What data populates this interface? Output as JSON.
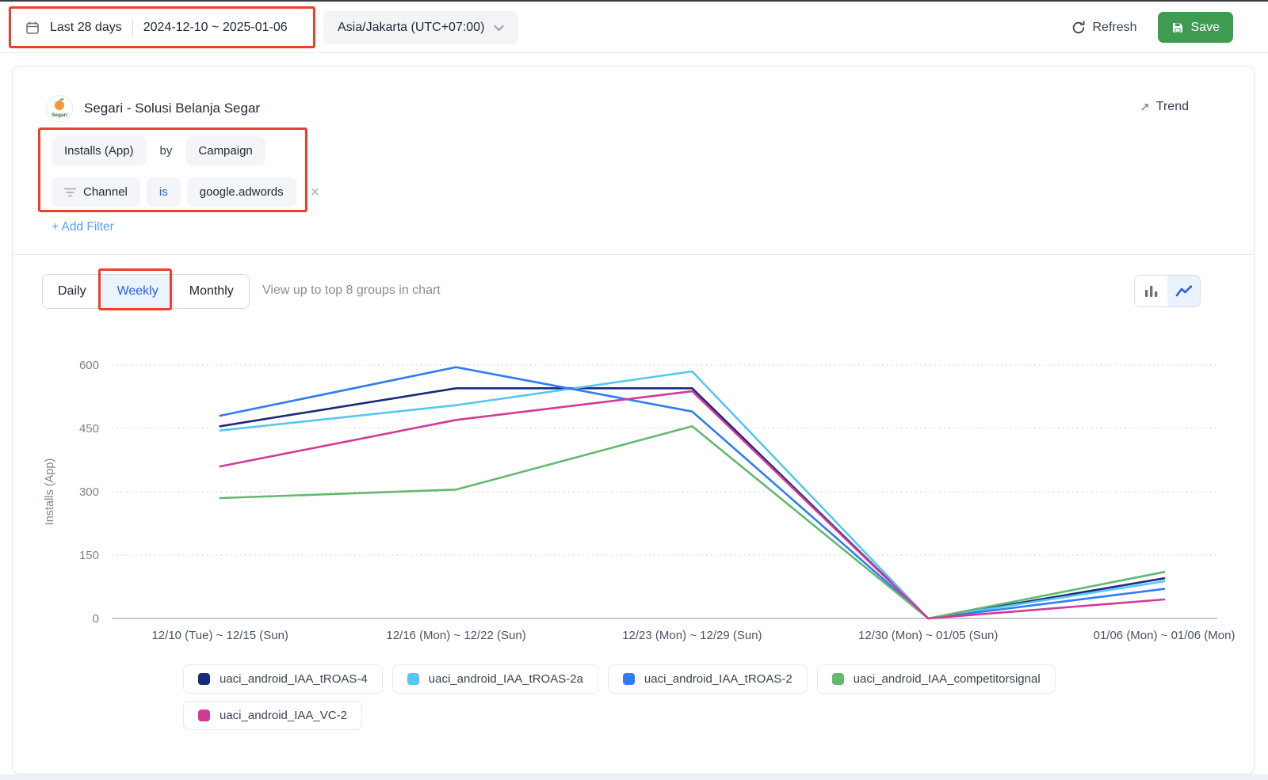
{
  "topbar": {
    "date_preset": "Last 28 days",
    "date_range": "2024-12-10 ~ 2025-01-06",
    "timezone": "Asia/Jakarta (UTC+07:00)",
    "refresh_label": "Refresh",
    "save_label": "Save"
  },
  "report": {
    "app_name": "Segari - Solusi Belanja Segar",
    "logo_text": "Segari",
    "trend_label": "Trend",
    "trend_arrow": "↗",
    "metric": "Installs (App)",
    "by_label": "by",
    "group_by": "Campaign",
    "filter": {
      "field": "Channel",
      "operator": "is",
      "value": "google.adwords",
      "close_glyph": "×"
    },
    "add_filter_label": "+ Add Filter"
  },
  "controls": {
    "granularity_tabs": [
      "Daily",
      "Weekly",
      "Monthly"
    ],
    "active_tab": "Weekly",
    "hint": "View up to top 8 groups in chart",
    "view_toggle": {
      "options": [
        "bar",
        "line"
      ],
      "active": "line"
    }
  },
  "chart_data": {
    "type": "line",
    "title": "",
    "xlabel": "",
    "ylabel": "Installs (App)",
    "yticks": [
      0,
      150,
      300,
      450,
      600
    ],
    "ylim": [
      0,
      650
    ],
    "grid": "dotted-horizontal",
    "legend_position": "bottom",
    "categories": [
      "12/10 (Tue) ~ 12/15 (Sun)",
      "12/16 (Mon) ~ 12/22 (Sun)",
      "12/23 (Mon) ~ 12/29 (Sun)",
      "12/30 (Mon) ~ 01/05 (Sun)",
      "01/06 (Mon) ~ 01/06 (Mon)"
    ],
    "series": [
      {
        "name": "uaci_android_IAA_tROAS-4",
        "color": "#1a2a7c",
        "values": [
          455,
          545,
          545,
          0,
          95
        ]
      },
      {
        "name": "uaci_android_IAA_tROAS-2a",
        "color": "#55c7f2",
        "values": [
          445,
          505,
          585,
          0,
          88
        ]
      },
      {
        "name": "uaci_android_IAA_tROAS-2",
        "color": "#2e7cf6",
        "values": [
          480,
          595,
          490,
          0,
          70
        ]
      },
      {
        "name": "uaci_android_IAA_competitorsignal",
        "color": "#62b96d",
        "values": [
          285,
          305,
          455,
          0,
          110
        ]
      },
      {
        "name": "uaci_android_IAA_VC-2",
        "color": "#d13a97",
        "values": [
          360,
          470,
          538,
          0,
          45
        ]
      }
    ]
  },
  "colors": {
    "accent_blue": "#2563eb",
    "save_green": "#3e9b4f",
    "annotation_red": "#e8402a",
    "chip_bg": "#f4f5f8",
    "grid_line": "#ced3da",
    "axis_line": "#b3bac4",
    "muted_text": "#868e9b"
  },
  "annotations": [
    "date-range-box",
    "filter-query-box",
    "weekly-tab-box"
  ]
}
